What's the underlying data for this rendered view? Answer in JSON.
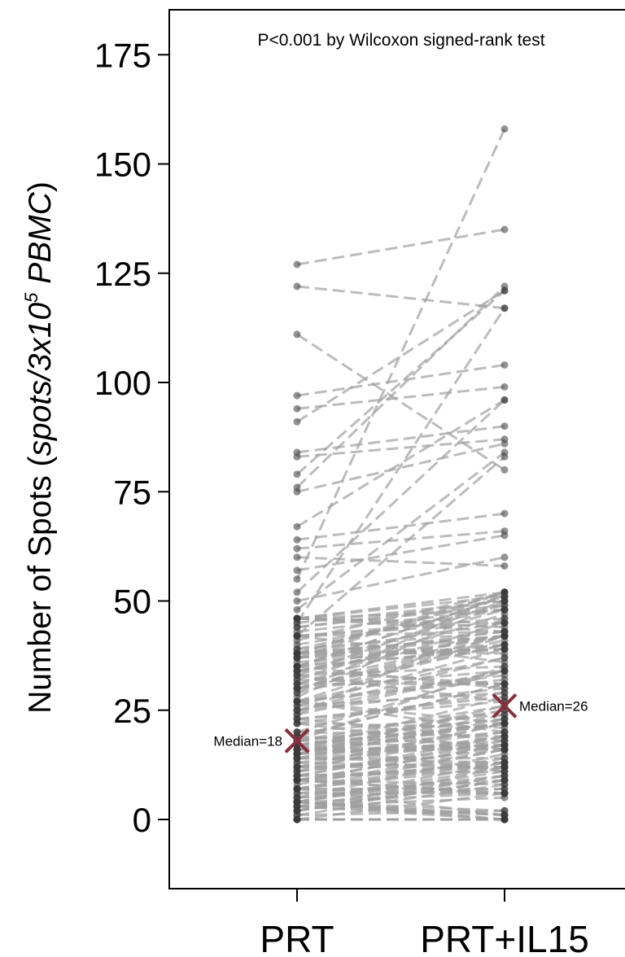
{
  "chart_data": {
    "type": "scatter",
    "annotation": "P<0.001 by Wilcoxon signed-rank test",
    "ylabel": {
      "prefix": "Number of Spots (",
      "italic": "spots/3x10",
      "sup": "5",
      "italic2": " PBMC",
      "suffix": ")"
    },
    "categories": [
      "PRT",
      "PRT+IL15"
    ],
    "ylim": [
      -13,
      183
    ],
    "yticks": [
      0,
      25,
      50,
      75,
      100,
      125,
      150,
      175
    ],
    "grid": false,
    "legend": "none",
    "medians": [
      {
        "group": "PRT",
        "value": 18,
        "label": "Median=18"
      },
      {
        "group": "PRT+IL15",
        "value": 26,
        "label": "Median=26"
      }
    ],
    "colors": {
      "points": "#3a3a3a",
      "lines": "#a0a0a0",
      "median": "#8b2e3c",
      "axis": "#000000"
    },
    "highlight_pairs": [
      [
        127,
        135
      ],
      [
        122,
        117
      ],
      [
        111,
        80
      ],
      [
        97,
        104
      ],
      [
        94,
        99
      ],
      [
        91,
        121
      ],
      [
        84,
        90
      ],
      [
        83,
        87
      ],
      [
        79,
        121
      ],
      [
        76,
        122
      ],
      [
        75,
        86
      ],
      [
        67,
        96
      ],
      [
        64,
        70
      ],
      [
        62,
        66
      ],
      [
        60,
        58
      ],
      [
        57,
        65
      ],
      [
        55,
        158
      ],
      [
        52,
        96
      ],
      [
        50,
        60
      ],
      [
        48,
        84
      ],
      [
        46,
        52
      ],
      [
        45,
        117
      ],
      [
        44,
        50
      ],
      [
        42,
        83
      ]
    ],
    "n_pairs": 190,
    "seed": 7
  }
}
